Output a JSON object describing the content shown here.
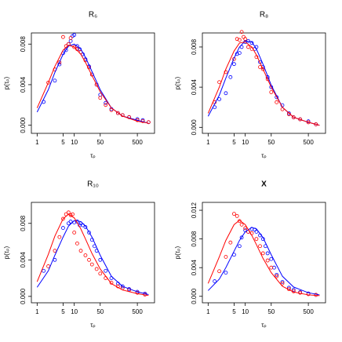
{
  "chart_data": [
    {
      "type": "scatter",
      "title": "R₆",
      "x_label": "τₚ",
      "y_label": "p(τₚ)",
      "log_x": true,
      "xlim": [
        0.7,
        1450
      ],
      "xticks": [
        1,
        5,
        10,
        50,
        500
      ],
      "ylim": [
        -0.0008,
        0.0091
      ],
      "yticks": [
        {
          "value": 0,
          "label": "0.000"
        },
        {
          "value": 0.004,
          "label": "0.004"
        },
        {
          "value": 0.008,
          "label": "0.008"
        }
      ],
      "series": [
        {
          "mode": "markers",
          "color": "#0000ff",
          "x": [
            1.5,
            3,
            4,
            5,
            6,
            7,
            8,
            9,
            10,
            12,
            14,
            17,
            20,
            25,
            30,
            40,
            50,
            70,
            100,
            150,
            200,
            300,
            500,
            700,
            1000
          ],
          "values": [
            0.0023,
            0.0044,
            0.006,
            0.0071,
            0.0074,
            0.008,
            0.0083,
            0.0088,
            0.0089,
            0.0078,
            0.0075,
            0.007,
            0.0065,
            0.0058,
            0.005,
            0.004,
            0.003,
            0.0022,
            0.0016,
            0.0012,
            0.001,
            0.0008,
            0.0006,
            0.0005,
            0.0003
          ]
        },
        {
          "mode": "markers",
          "color": "#ff0000",
          "x": [
            2,
            3,
            4,
            5,
            6,
            7,
            8,
            10,
            12,
            15,
            20,
            25,
            30,
            40,
            50,
            70,
            100,
            150,
            200,
            300,
            500,
            700,
            1000
          ],
          "values": [
            0.0042,
            0.0055,
            0.0062,
            0.0087,
            0.0078,
            0.008,
            0.0086,
            0.0077,
            0.0075,
            0.0072,
            0.0064,
            0.0057,
            0.005,
            0.004,
            0.0027,
            0.002,
            0.0015,
            0.0012,
            0.001,
            0.0008,
            0.0005,
            0.0004,
            0.0003
          ]
        },
        {
          "mode": "line",
          "color": "#0000ff",
          "x": [
            1,
            2,
            3,
            5,
            7,
            10,
            15,
            20,
            30,
            50,
            100,
            200,
            500,
            1000
          ],
          "values": [
            0.0013,
            0.0035,
            0.0052,
            0.007,
            0.0078,
            0.008,
            0.0075,
            0.0067,
            0.0053,
            0.0035,
            0.0017,
            0.0009,
            0.0005,
            0.0002
          ]
        },
        {
          "mode": "line",
          "color": "#ff0000",
          "x": [
            1,
            2,
            3,
            5,
            7,
            10,
            15,
            20,
            30,
            50,
            100,
            200,
            500,
            1000
          ],
          "values": [
            0.0017,
            0.0042,
            0.0058,
            0.0074,
            0.0079,
            0.0077,
            0.007,
            0.0062,
            0.0049,
            0.0033,
            0.0017,
            0.0009,
            0.0004,
            0.0002
          ]
        }
      ]
    },
    {
      "type": "scatter",
      "title": "R₈",
      "x_label": "τₚ",
      "y_label": "p(τₚ)",
      "log_x": true,
      "xlim": [
        0.7,
        1450
      ],
      "xticks": [
        1,
        5,
        10,
        50,
        500
      ],
      "ylim": [
        -0.0006,
        0.0094
      ],
      "yticks": [
        {
          "value": 0,
          "label": "0.000"
        },
        {
          "value": 0.004,
          "label": "0.004"
        },
        {
          "value": 0.008,
          "label": "0.008"
        }
      ],
      "series": [
        {
          "mode": "markers",
          "color": "#0000ff",
          "x": [
            1.5,
            2,
            3,
            4,
            5,
            6,
            7,
            8,
            10,
            12,
            15,
            18,
            20,
            25,
            30,
            40,
            50,
            70,
            100,
            150,
            200,
            300,
            500,
            800
          ],
          "values": [
            0.002,
            0.0028,
            0.0034,
            0.005,
            0.0063,
            0.0073,
            0.0074,
            0.008,
            0.0085,
            0.0086,
            0.0084,
            0.0078,
            0.008,
            0.0065,
            0.006,
            0.005,
            0.004,
            0.003,
            0.0022,
            0.0014,
            0.001,
            0.0008,
            0.0006,
            0.0003
          ]
        },
        {
          "mode": "markers",
          "color": "#ff0000",
          "x": [
            1.5,
            2,
            3,
            5,
            6,
            7,
            8,
            9,
            10,
            12,
            15,
            20,
            25,
            30,
            40,
            50,
            70,
            100,
            150,
            200,
            300,
            500,
            800
          ],
          "values": [
            0.0025,
            0.0045,
            0.0055,
            0.0068,
            0.0088,
            0.0087,
            0.0095,
            0.009,
            0.0088,
            0.008,
            0.0078,
            0.007,
            0.006,
            0.0058,
            0.0048,
            0.0035,
            0.0025,
            0.0018,
            0.0013,
            0.001,
            0.0008,
            0.0005,
            0.0003
          ]
        },
        {
          "mode": "line",
          "color": "#0000ff",
          "x": [
            1,
            2,
            3,
            5,
            7,
            10,
            15,
            20,
            30,
            50,
            100,
            200,
            500,
            1000
          ],
          "values": [
            0.0011,
            0.0032,
            0.0049,
            0.0069,
            0.008,
            0.0086,
            0.0085,
            0.0078,
            0.0063,
            0.0042,
            0.002,
            0.001,
            0.0005,
            0.0002
          ]
        },
        {
          "mode": "line",
          "color": "#ff0000",
          "x": [
            1,
            2,
            3,
            5,
            7,
            10,
            15,
            20,
            30,
            50,
            100,
            200,
            500,
            1000
          ],
          "values": [
            0.0014,
            0.004,
            0.0058,
            0.0076,
            0.0084,
            0.0085,
            0.008,
            0.0072,
            0.0058,
            0.004,
            0.002,
            0.001,
            0.0005,
            0.0002
          ]
        }
      ]
    },
    {
      "type": "scatter",
      "title": "R₁₀",
      "x_label": "τₚ",
      "y_label": "p(τₚ)",
      "log_x": true,
      "xlim": [
        0.7,
        1450
      ],
      "xticks": [
        1,
        5,
        10,
        50,
        500
      ],
      "ylim": [
        -0.0007,
        0.0103
      ],
      "yticks": [
        {
          "value": 0,
          "label": "0.000"
        },
        {
          "value": 0.004,
          "label": "0.004"
        },
        {
          "value": 0.008,
          "label": "0.008"
        }
      ],
      "series": [
        {
          "mode": "markers",
          "color": "#0000ff",
          "x": [
            1.5,
            3,
            5,
            7,
            8,
            10,
            12,
            14,
            15,
            17,
            20,
            25,
            30,
            35,
            40,
            50,
            70,
            100,
            150,
            200,
            300,
            500,
            800
          ],
          "values": [
            0.0028,
            0.004,
            0.0075,
            0.008,
            0.0082,
            0.0081,
            0.0082,
            0.0078,
            0.008,
            0.0078,
            0.0076,
            0.007,
            0.0062,
            0.0055,
            0.005,
            0.004,
            0.0028,
            0.002,
            0.0014,
            0.0011,
            0.0008,
            0.0005,
            0.0003
          ]
        },
        {
          "mode": "markers",
          "color": "#ff0000",
          "x": [
            2,
            3,
            4,
            5,
            6,
            7,
            8,
            9,
            10,
            12,
            15,
            20,
            25,
            30,
            40,
            50,
            70,
            100,
            150,
            200,
            300,
            500,
            800
          ],
          "values": [
            0.0033,
            0.005,
            0.0065,
            0.0085,
            0.009,
            0.0092,
            0.0089,
            0.009,
            0.007,
            0.0058,
            0.005,
            0.0045,
            0.004,
            0.0035,
            0.003,
            0.0025,
            0.002,
            0.0015,
            0.0011,
            0.0009,
            0.0007,
            0.0004,
            0.0002
          ]
        },
        {
          "mode": "line",
          "color": "#0000ff",
          "x": [
            1,
            2,
            3,
            5,
            7,
            10,
            15,
            20,
            30,
            50,
            100,
            200,
            500,
            1000
          ],
          "values": [
            0.001,
            0.0028,
            0.0045,
            0.0065,
            0.0077,
            0.0083,
            0.0082,
            0.0077,
            0.0065,
            0.0045,
            0.0022,
            0.0011,
            0.0005,
            0.0002
          ]
        },
        {
          "mode": "line",
          "color": "#ff0000",
          "x": [
            1,
            2,
            3,
            5,
            7,
            10,
            15,
            20,
            30,
            50,
            100,
            200,
            500,
            1000
          ],
          "values": [
            0.0016,
            0.0046,
            0.0066,
            0.0085,
            0.009,
            0.0086,
            0.0074,
            0.0063,
            0.0047,
            0.003,
            0.0014,
            0.0007,
            0.0003,
            0.0001
          ]
        }
      ]
    },
    {
      "type": "scatter",
      "title": "X",
      "x_label": "τₚ",
      "y_label": "p(τₚ)",
      "log_x": true,
      "xlim": [
        0.7,
        1450
      ],
      "xticks": [
        1,
        5,
        10,
        50,
        500
      ],
      "ylim": [
        -0.0009,
        0.0131
      ],
      "yticks": [
        {
          "value": 0,
          "label": "0.000"
        },
        {
          "value": 0.004,
          "label": "0.004"
        },
        {
          "value": 0.008,
          "label": "0.008"
        },
        {
          "value": 0.012,
          "label": "0.012"
        }
      ],
      "series": [
        {
          "mode": "markers",
          "color": "#0000ff",
          "x": [
            1.5,
            3,
            5,
            7,
            8,
            10,
            12,
            15,
            18,
            20,
            25,
            30,
            35,
            40,
            50,
            60,
            70,
            100,
            150,
            200,
            300,
            500,
            800
          ],
          "values": [
            0.0021,
            0.0033,
            0.0058,
            0.007,
            0.0082,
            0.0092,
            0.009,
            0.0094,
            0.0093,
            0.009,
            0.0085,
            0.008,
            0.007,
            0.006,
            0.0052,
            0.004,
            0.003,
            0.002,
            0.0012,
            0.0009,
            0.0006,
            0.0004,
            0.0002
          ]
        },
        {
          "mode": "markers",
          "color": "#ff0000",
          "x": [
            2,
            3,
            4,
            5,
            6,
            7,
            8,
            10,
            12,
            15,
            20,
            25,
            30,
            40,
            50,
            70,
            100,
            150,
            200,
            300,
            500,
            800
          ],
          "values": [
            0.0035,
            0.0055,
            0.0075,
            0.0115,
            0.0112,
            0.0105,
            0.01,
            0.0095,
            0.009,
            0.0088,
            0.008,
            0.007,
            0.006,
            0.005,
            0.004,
            0.0028,
            0.0018,
            0.001,
            0.0007,
            0.0005,
            0.0003,
            0.0002
          ]
        },
        {
          "mode": "line",
          "color": "#0000ff",
          "x": [
            1,
            2,
            3,
            5,
            7,
            10,
            15,
            20,
            30,
            50,
            100,
            200,
            500,
            1000
          ],
          "values": [
            0.0008,
            0.0024,
            0.004,
            0.0063,
            0.0078,
            0.009,
            0.0096,
            0.0094,
            0.0082,
            0.0058,
            0.0028,
            0.0013,
            0.0005,
            0.0002
          ]
        },
        {
          "mode": "line",
          "color": "#ff0000",
          "x": [
            1,
            2,
            3,
            5,
            7,
            10,
            15,
            20,
            30,
            50,
            100,
            200,
            500,
            1000
          ],
          "values": [
            0.0018,
            0.0055,
            0.0078,
            0.01,
            0.0106,
            0.01,
            0.0085,
            0.0072,
            0.0053,
            0.0033,
            0.0014,
            0.0006,
            0.0002,
            0.0001
          ]
        }
      ]
    }
  ]
}
